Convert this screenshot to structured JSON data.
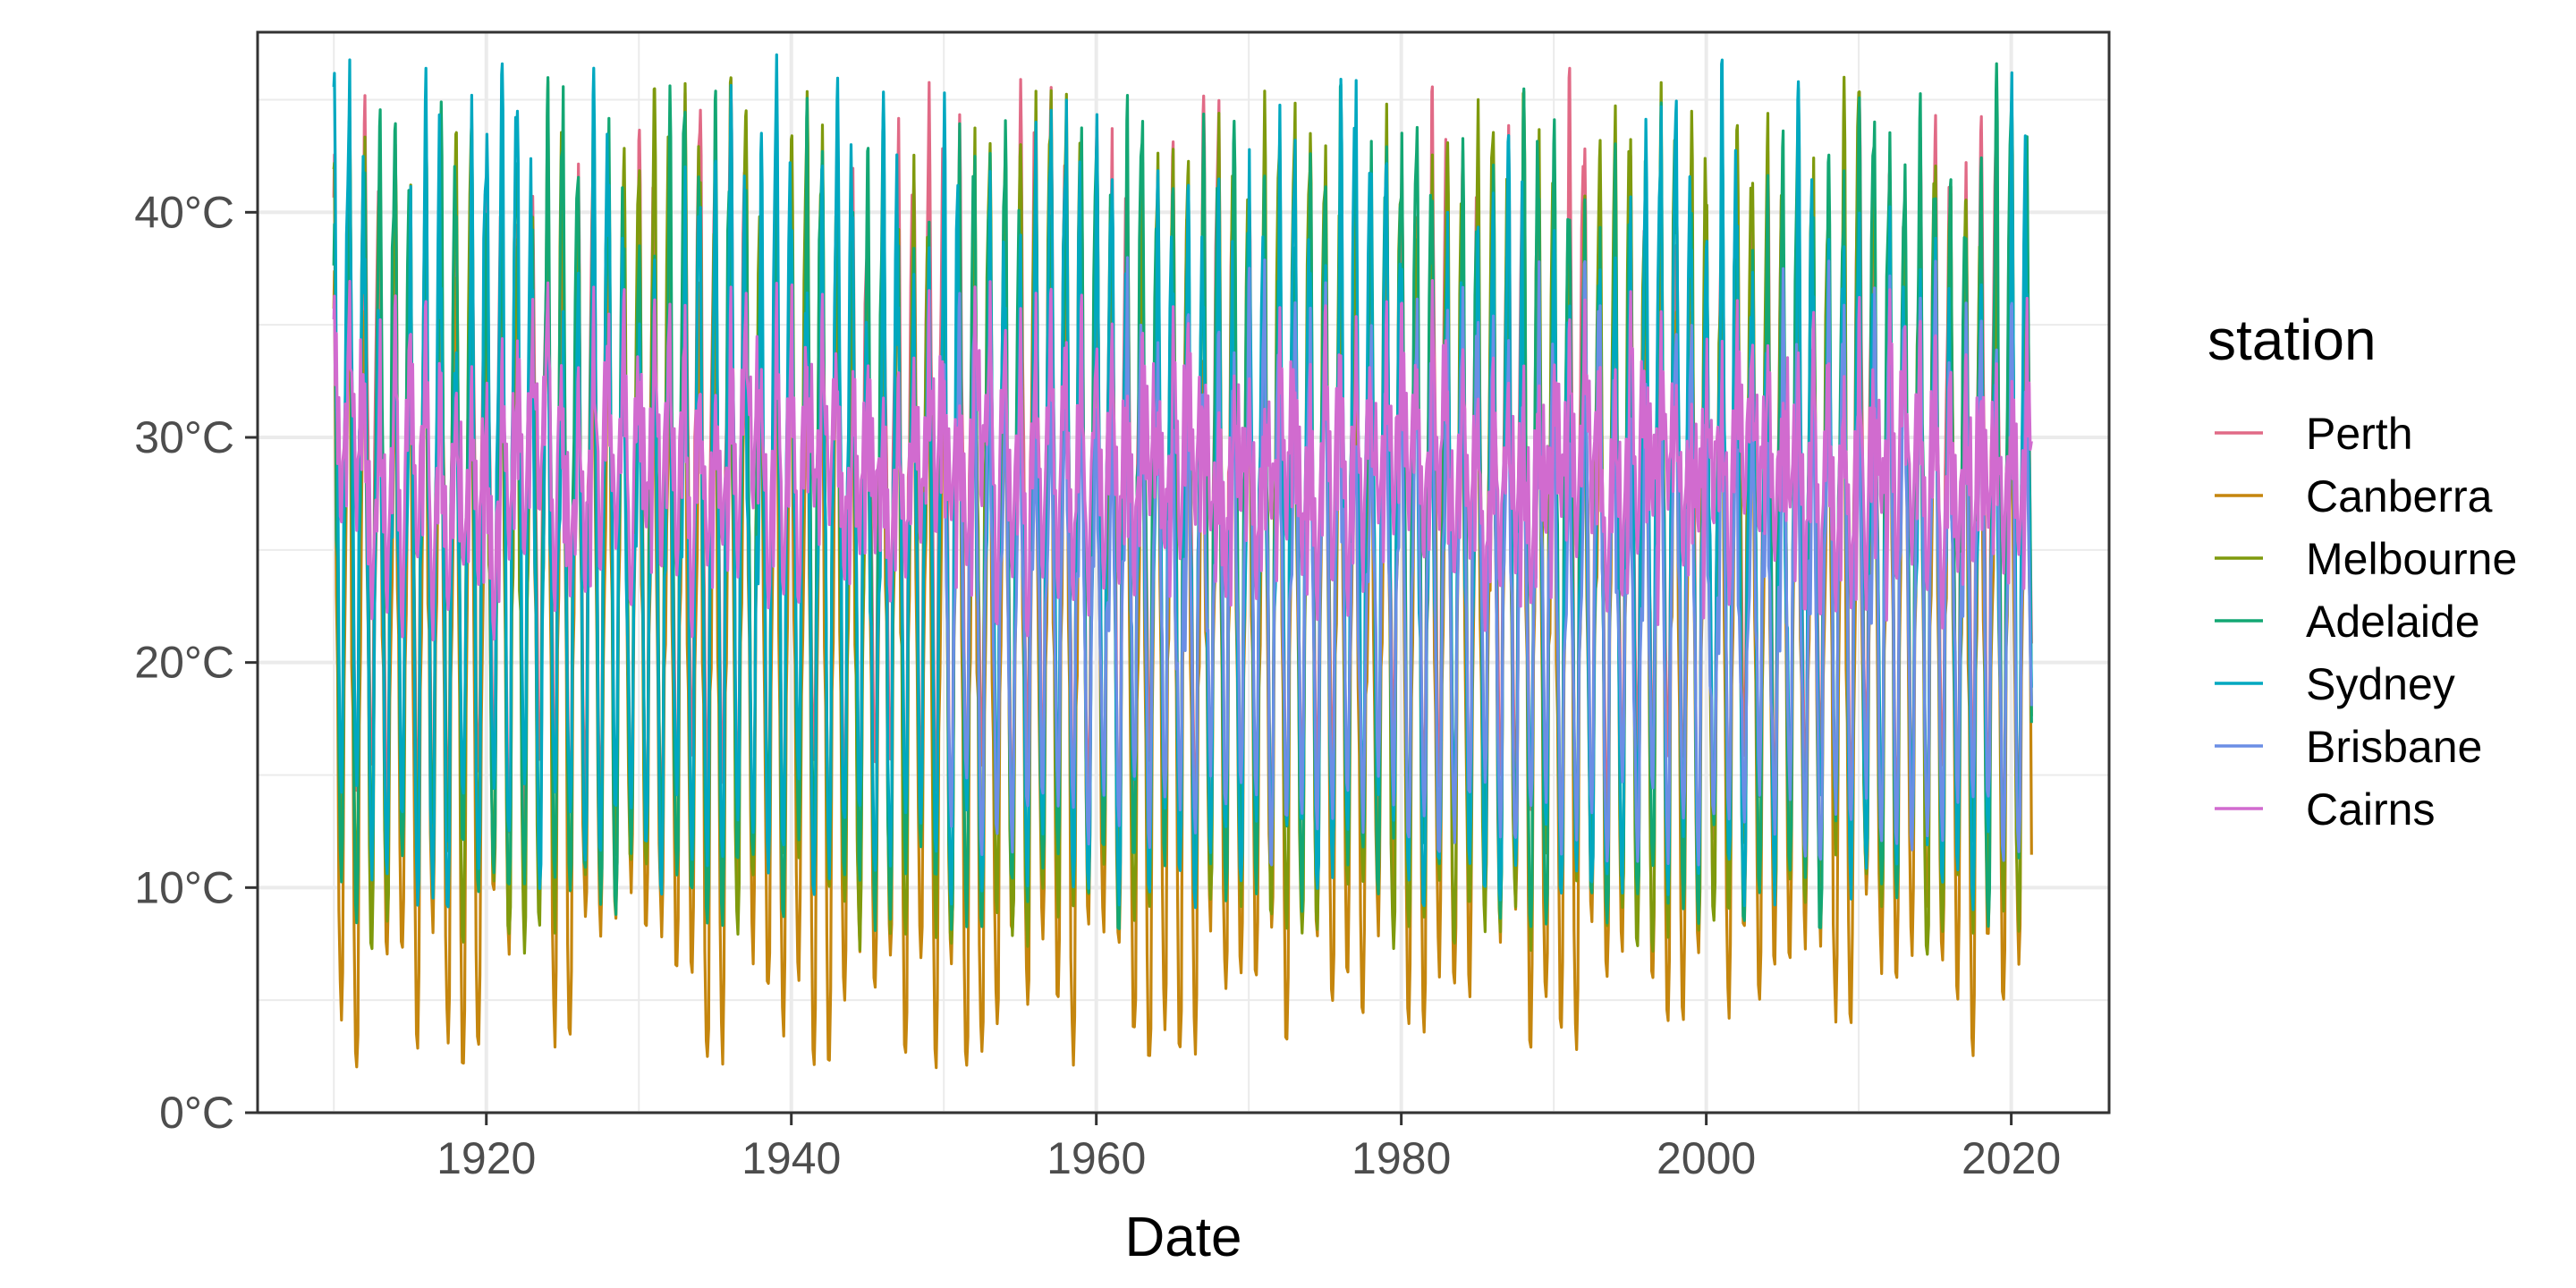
{
  "chart_data": {
    "type": "line",
    "title": "",
    "xlabel": "Date",
    "ylabel": "",
    "x_range": [
      "1910-01",
      "2021-06"
    ],
    "xlim": [
      "1905-01",
      "2026-06"
    ],
    "ylim": [
      0,
      48
    ],
    "x_ticks": [
      "1920",
      "1940",
      "1960",
      "1980",
      "2000",
      "2020"
    ],
    "y_ticks": [
      "0°C",
      "10°C",
      "20°C",
      "30°C",
      "40°C"
    ],
    "grid": true,
    "theme": "bw",
    "legend": {
      "title": "station",
      "position": "right"
    },
    "series": [
      {
        "name": "Perth",
        "color": "#E16A86",
        "summer_max_range": [
          36,
          46
        ],
        "winter_min_range": [
          12,
          16
        ],
        "extremes": [
          {
            "x": "1933",
            "y": 45.3
          },
          {
            "x": "1956",
            "y": 44.5
          },
          {
            "x": "1991",
            "y": 46.4
          },
          {
            "x": "2015",
            "y": 44.3
          }
        ]
      },
      {
        "name": "Canberra",
        "color": "#C5860E",
        "summer_max_range": [
          33,
          40
        ],
        "winter_min_range": [
          2,
          10
        ],
        "extremes": [
          {
            "x": "1918",
            "y": 2.2
          },
          {
            "x": "1934",
            "y": 2.5
          },
          {
            "x": "1949",
            "y": 2.0
          },
          {
            "x": "1966",
            "y": 2.6
          },
          {
            "x": "2001",
            "y": 4.2
          },
          {
            "x": "2009",
            "y": 4.0
          }
        ]
      },
      {
        "name": "Melbourne",
        "color": "#7F9A0D",
        "summer_max_range": [
          38,
          46
        ],
        "winter_min_range": [
          7,
          12
        ],
        "extremes": [
          {
            "x": "1968",
            "y": 44.4
          },
          {
            "x": "2009",
            "y": 46.0
          }
        ]
      },
      {
        "name": "Adelaide",
        "color": "#13A773",
        "summer_max_range": [
          38,
          46
        ],
        "winter_min_range": [
          8,
          13
        ],
        "extremes": [
          {
            "x": "2019",
            "y": 46.6
          }
        ]
      },
      {
        "name": "Sydney",
        "color": "#00A8C0",
        "summer_max_range": [
          32,
          47
        ],
        "winter_min_range": [
          9,
          15
        ],
        "extremes": [
          {
            "x": "1939",
            "y": 47.0
          },
          {
            "x": "2020",
            "y": 46.2
          }
        ]
      },
      {
        "name": "Brisbane",
        "color": "#6B8EE5",
        "start": "1950",
        "summer_max_range": [
          29,
          38
        ],
        "winter_min_range": [
          11,
          15
        ]
      },
      {
        "name": "Cairns",
        "color": "#D16BCF",
        "summer_max_range": [
          31,
          37
        ],
        "winter_min_range": [
          21,
          27
        ]
      }
    ]
  }
}
